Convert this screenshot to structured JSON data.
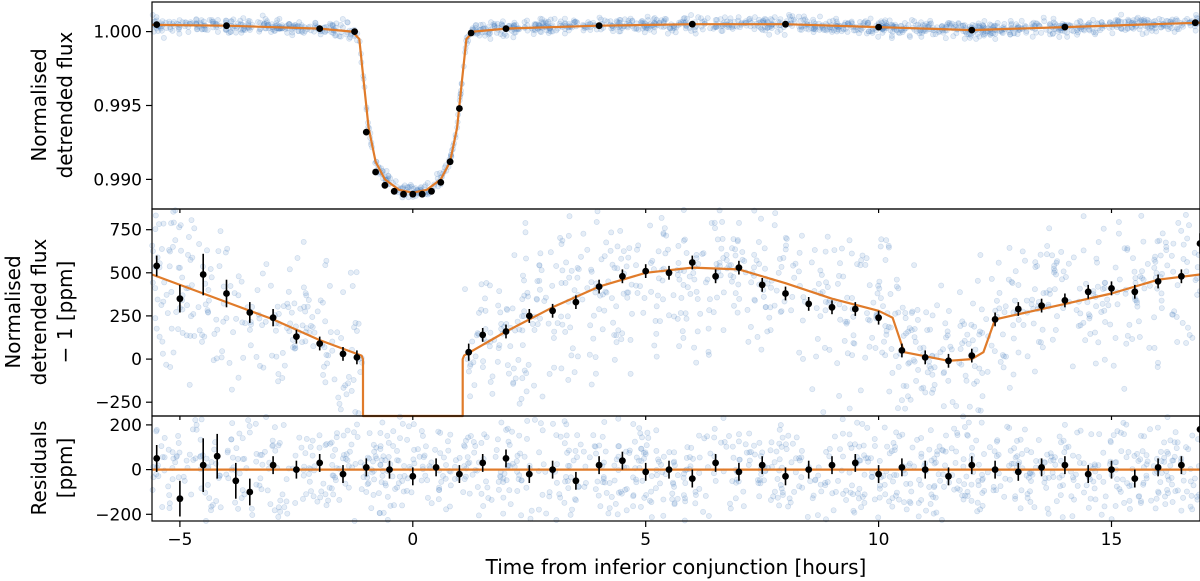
{
  "colors": {
    "raw_points": "#4a7fc0",
    "model": "#e07b2a",
    "binned": "#000000",
    "axes": "#000000",
    "background": "#ffffff"
  },
  "chart_data": [
    {
      "type": "scatter",
      "panel": "top",
      "ylabel_lines": [
        "Normalised",
        "detrended flux"
      ],
      "xlim": [
        -5.6,
        16.9
      ],
      "ylim": [
        0.988,
        1.002
      ],
      "yticks": [
        0.99,
        0.995,
        1.0
      ],
      "ytick_labels": [
        "0.990",
        "0.995",
        "1.000"
      ],
      "model_line": {
        "x": [
          -5.6,
          -4,
          -2,
          -1.3,
          -1.15,
          -1.05,
          -0.95,
          -0.8,
          -0.6,
          -0.3,
          0,
          0.3,
          0.6,
          0.8,
          0.95,
          1.05,
          1.15,
          1.3,
          2,
          4,
          6,
          8,
          10,
          12,
          14,
          16.9
        ],
        "y": [
          1.00045,
          1.0004,
          1.0002,
          1.0,
          0.9995,
          0.9965,
          0.9935,
          0.9912,
          0.99,
          0.9893,
          0.9891,
          0.9893,
          0.99,
          0.9912,
          0.9935,
          0.9965,
          0.9995,
          1.0,
          1.0002,
          1.0004,
          1.0005,
          1.0005,
          1.0003,
          1.0001,
          1.0003,
          1.0006
        ]
      },
      "binned_points": {
        "x": [
          -5.5,
          -4.0,
          -2.0,
          -1.25,
          -1.0,
          -0.8,
          -0.6,
          -0.4,
          -0.2,
          0,
          0.2,
          0.4,
          0.6,
          0.8,
          1.0,
          1.25,
          2.0,
          4.0,
          6.0,
          8.0,
          10.0,
          12.0,
          14.0,
          16.8
        ],
        "y": [
          1.00047,
          1.0004,
          1.0002,
          1.0,
          0.9932,
          0.9905,
          0.9896,
          0.9892,
          0.989,
          0.989,
          0.989,
          0.9892,
          0.9898,
          0.9912,
          0.9948,
          0.9999,
          1.0002,
          1.0004,
          1.0005,
          1.0005,
          1.0003,
          1.0001,
          1.0003,
          1.0006
        ]
      }
    },
    {
      "type": "scatter",
      "panel": "middle",
      "ylabel_lines": [
        "Normalised",
        "detrended flux",
        "− 1  [ppm]"
      ],
      "xlim": [
        -5.6,
        16.9
      ],
      "ylim": [
        -330,
        870
      ],
      "yticks": [
        -250,
        0,
        250,
        500,
        750
      ],
      "ytick_labels": [
        "−250",
        "0",
        "250",
        "500",
        "750"
      ],
      "model_line": {
        "x": [
          -5.6,
          -4,
          -3,
          -2,
          -1.1,
          -1.07,
          -1.07,
          1.07,
          1.07,
          1.1,
          2,
          3,
          4,
          5,
          6,
          7,
          8,
          9,
          10,
          10.3,
          10.55,
          11.5,
          12,
          12.25,
          12.5,
          14,
          15,
          16,
          16.9
        ],
        "y": [
          490,
          330,
          230,
          110,
          20,
          0,
          -330,
          -330,
          0,
          20,
          160,
          300,
          420,
          500,
          530,
          520,
          440,
          350,
          280,
          240,
          40,
          -10,
          0,
          40,
          230,
          320,
          380,
          460,
          490
        ]
      },
      "binned_points": {
        "x": [
          -5.5,
          -5.0,
          -4.5,
          -4.0,
          -3.5,
          -3.0,
          -2.5,
          -2.0,
          -1.5,
          -1.2,
          1.2,
          1.5,
          2.0,
          2.5,
          3.0,
          3.5,
          4.0,
          4.5,
          5.0,
          5.5,
          6.0,
          6.5,
          7.0,
          7.5,
          8.0,
          8.5,
          9.0,
          9.5,
          10.0,
          10.5,
          11.0,
          11.5,
          12.0,
          12.5,
          13.0,
          13.5,
          14.0,
          14.5,
          15.0,
          15.5,
          16.0,
          16.5,
          16.9
        ],
        "y": [
          540,
          350,
          490,
          380,
          270,
          240,
          130,
          90,
          30,
          10,
          40,
          140,
          160,
          250,
          280,
          330,
          420,
          480,
          510,
          500,
          560,
          480,
          530,
          430,
          380,
          320,
          300,
          290,
          240,
          50,
          10,
          -10,
          20,
          230,
          290,
          310,
          340,
          390,
          410,
          390,
          450,
          480,
          670
        ],
        "err": [
          60,
          80,
          120,
          80,
          60,
          50,
          40,
          40,
          40,
          40,
          50,
          40,
          40,
          40,
          40,
          40,
          40,
          40,
          40,
          40,
          40,
          40,
          40,
          40,
          40,
          40,
          40,
          40,
          40,
          40,
          40,
          40,
          40,
          40,
          40,
          40,
          40,
          40,
          40,
          40,
          40,
          40,
          60
        ]
      }
    },
    {
      "type": "scatter",
      "panel": "bottom",
      "ylabel_lines": [
        "Residuals",
        "[ppm]"
      ],
      "xlim": [
        -5.6,
        16.9
      ],
      "ylim": [
        -230,
        240
      ],
      "yticks": [
        -200,
        0,
        200
      ],
      "ytick_labels": [
        "−200",
        "0",
        "200"
      ],
      "xticks": [
        -5,
        0,
        5,
        10,
        15
      ],
      "xtick_labels": [
        "−5",
        "0",
        "5",
        "10",
        "15"
      ],
      "xlabel": "Time from inferior conjunction [hours]",
      "model_line": {
        "x": [
          -5.6,
          16.9
        ],
        "y": [
          0,
          0
        ]
      },
      "binned_points": {
        "x": [
          -5.5,
          -5.0,
          -4.5,
          -4.2,
          -3.8,
          -3.5,
          -3.0,
          -2.5,
          -2.0,
          -1.5,
          -1.0,
          -0.5,
          0.0,
          0.5,
          1.0,
          1.5,
          2.0,
          2.5,
          3.0,
          3.5,
          4.0,
          4.5,
          5.0,
          5.5,
          6.0,
          6.5,
          7.0,
          7.5,
          8.0,
          8.5,
          9.0,
          9.5,
          10.0,
          10.5,
          11.0,
          11.5,
          12.0,
          12.5,
          13.0,
          13.5,
          14.0,
          14.5,
          15.0,
          15.5,
          16.0,
          16.5,
          16.9
        ],
        "y": [
          50,
          -130,
          20,
          60,
          -50,
          -100,
          20,
          0,
          30,
          -20,
          10,
          0,
          -30,
          10,
          -20,
          30,
          50,
          -20,
          0,
          -50,
          20,
          40,
          -10,
          0,
          -40,
          30,
          -10,
          20,
          -30,
          0,
          20,
          30,
          -20,
          10,
          0,
          -30,
          20,
          0,
          -10,
          10,
          20,
          -20,
          0,
          -40,
          10,
          20,
          180
        ],
        "err": [
          60,
          80,
          120,
          100,
          80,
          60,
          40,
          40,
          40,
          40,
          40,
          40,
          40,
          40,
          40,
          40,
          40,
          40,
          40,
          40,
          40,
          40,
          40,
          40,
          40,
          40,
          40,
          40,
          40,
          40,
          40,
          40,
          40,
          40,
          40,
          40,
          40,
          40,
          40,
          40,
          40,
          40,
          40,
          40,
          40,
          40,
          60
        ]
      }
    }
  ]
}
